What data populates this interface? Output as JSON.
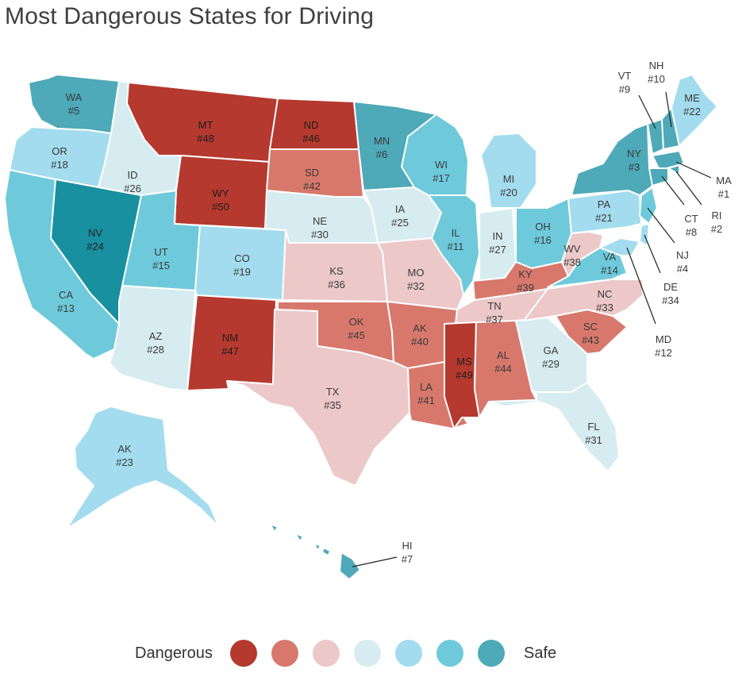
{
  "title": "Most Dangerous States for Driving",
  "colors": {
    "c1": "#b5392e",
    "c2": "#d8786c",
    "c3": "#ecc8c8",
    "c4": "#d6ecf1",
    "c5": "#a3dcee",
    "c6": "#6ecadb",
    "c7": "#4ea9b8",
    "c8": "#18909f"
  },
  "legend": {
    "left_label": "Dangerous",
    "right_label": "Safe",
    "swatches": [
      "#b5392e",
      "#d8786c",
      "#ecc8c8",
      "#d6ecf1",
      "#a3dcee",
      "#6ecadb",
      "#4ea9b8"
    ]
  },
  "states": [
    {
      "abbr": "WA",
      "rank": "#5"
    },
    {
      "abbr": "OR",
      "rank": "#18"
    },
    {
      "abbr": "CA",
      "rank": "#13"
    },
    {
      "abbr": "NV",
      "rank": "#24"
    },
    {
      "abbr": "ID",
      "rank": "#26"
    },
    {
      "abbr": "MT",
      "rank": "#48"
    },
    {
      "abbr": "WY",
      "rank": "#50"
    },
    {
      "abbr": "UT",
      "rank": "#15"
    },
    {
      "abbr": "AZ",
      "rank": "#28"
    },
    {
      "abbr": "CO",
      "rank": "#19"
    },
    {
      "abbr": "NM",
      "rank": "#47"
    },
    {
      "abbr": "ND",
      "rank": "#46"
    },
    {
      "abbr": "SD",
      "rank": "#42"
    },
    {
      "abbr": "NE",
      "rank": "#30"
    },
    {
      "abbr": "KS",
      "rank": "#36"
    },
    {
      "abbr": "OK",
      "rank": "#45"
    },
    {
      "abbr": "TX",
      "rank": "#35"
    },
    {
      "abbr": "MN",
      "rank": "#6"
    },
    {
      "abbr": "IA",
      "rank": "#25"
    },
    {
      "abbr": "MO",
      "rank": "#32"
    },
    {
      "abbr": "AK",
      "rank": "#40"
    },
    {
      "abbr": "LA",
      "rank": "#41"
    },
    {
      "abbr": "WI",
      "rank": "#17"
    },
    {
      "abbr": "IL",
      "rank": "#11"
    },
    {
      "abbr": "MI",
      "rank": "#20"
    },
    {
      "abbr": "IN",
      "rank": "#27"
    },
    {
      "abbr": "OH",
      "rank": "#16"
    },
    {
      "abbr": "KY",
      "rank": "#39"
    },
    {
      "abbr": "TN",
      "rank": "#37"
    },
    {
      "abbr": "MS",
      "rank": "#49"
    },
    {
      "abbr": "AL",
      "rank": "#44"
    },
    {
      "abbr": "GA",
      "rank": "#29"
    },
    {
      "abbr": "FL",
      "rank": "#31"
    },
    {
      "abbr": "SC",
      "rank": "#43"
    },
    {
      "abbr": "NC",
      "rank": "#33"
    },
    {
      "abbr": "VA",
      "rank": "#14"
    },
    {
      "abbr": "WV",
      "rank": "#38"
    },
    {
      "abbr": "PA",
      "rank": "#21"
    },
    {
      "abbr": "NY",
      "rank": "#3"
    },
    {
      "abbr": "VT",
      "rank": "#9"
    },
    {
      "abbr": "NH",
      "rank": "#10"
    },
    {
      "abbr": "ME",
      "rank": "#22"
    },
    {
      "abbr": "MA",
      "rank": "#1"
    },
    {
      "abbr": "RI",
      "rank": "#2"
    },
    {
      "abbr": "CT",
      "rank": "#8"
    },
    {
      "abbr": "NJ",
      "rank": "#4"
    },
    {
      "abbr": "DE",
      "rank": "#34"
    },
    {
      "abbr": "MD",
      "rank": "#12"
    },
    {
      "abbr": "AK",
      "rank": "#23"
    },
    {
      "abbr": "HI",
      "rank": "#7"
    }
  ]
}
